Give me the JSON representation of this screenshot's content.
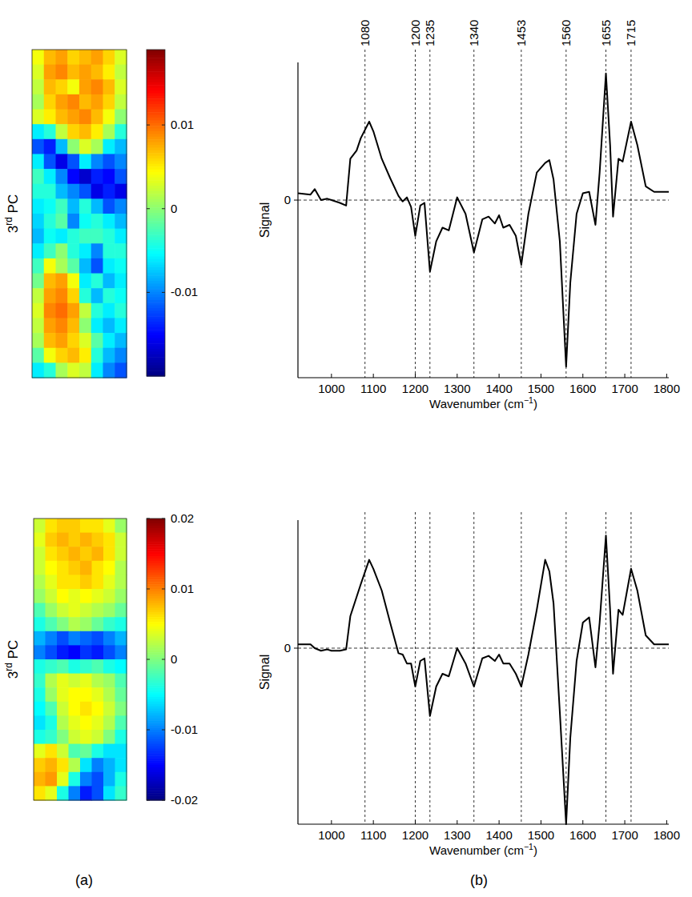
{
  "chart_data": [
    {
      "type": "heatmap",
      "ylabel": "3rd PC",
      "colorbar_range": [
        -0.02,
        0.019
      ],
      "colorbar_ticks": [
        -0.01,
        0,
        0.01
      ],
      "cells": [
        [
          0.004,
          0.007,
          0.008,
          0.006,
          0.007,
          0.008,
          0.006,
          0.003
        ],
        [
          0.003,
          0.008,
          0.009,
          0.007,
          0.008,
          0.007,
          0.005,
          0.002
        ],
        [
          0.002,
          0.007,
          0.006,
          0.004,
          0.008,
          0.009,
          0.007,
          0.003
        ],
        [
          0.001,
          0.006,
          0.008,
          0.009,
          0.007,
          0.008,
          0.006,
          0.002
        ],
        [
          0.003,
          0.005,
          0.007,
          0.008,
          0.009,
          0.007,
          0.004,
          0.0
        ],
        [
          -0.006,
          -0.004,
          0.002,
          0.006,
          0.007,
          0.005,
          0.001,
          -0.004
        ],
        [
          -0.012,
          -0.014,
          -0.008,
          0.0,
          0.003,
          0.001,
          -0.006,
          -0.008
        ],
        [
          -0.006,
          -0.012,
          -0.016,
          -0.012,
          -0.006,
          -0.01,
          -0.012,
          -0.01
        ],
        [
          -0.003,
          -0.006,
          -0.01,
          -0.015,
          -0.017,
          -0.014,
          -0.015,
          -0.012
        ],
        [
          -0.004,
          -0.004,
          -0.008,
          -0.01,
          -0.012,
          -0.016,
          -0.014,
          -0.016
        ],
        [
          -0.006,
          -0.005,
          -0.003,
          -0.008,
          -0.004,
          -0.008,
          -0.012,
          -0.01
        ],
        [
          -0.007,
          -0.004,
          -0.002,
          -0.01,
          -0.005,
          -0.004,
          -0.006,
          -0.008
        ],
        [
          -0.008,
          -0.005,
          -0.006,
          -0.004,
          -0.003,
          -0.003,
          -0.004,
          -0.006
        ],
        [
          -0.006,
          -0.003,
          0.0,
          -0.004,
          -0.006,
          -0.01,
          -0.004,
          -0.004
        ],
        [
          -0.003,
          0.004,
          0.001,
          -0.002,
          -0.008,
          -0.012,
          -0.006,
          -0.005
        ],
        [
          -0.001,
          0.007,
          0.008,
          0.004,
          -0.006,
          -0.004,
          -0.008,
          -0.006
        ],
        [
          0.002,
          0.008,
          0.009,
          0.006,
          -0.004,
          -0.008,
          -0.004,
          -0.005
        ],
        [
          0.003,
          0.009,
          0.01,
          0.008,
          0.002,
          -0.004,
          -0.006,
          -0.004
        ],
        [
          0.002,
          0.008,
          0.009,
          0.007,
          0.0,
          -0.006,
          -0.008,
          -0.006
        ],
        [
          0.001,
          0.007,
          0.008,
          0.006,
          0.003,
          -0.002,
          -0.006,
          -0.008
        ],
        [
          -0.002,
          0.004,
          0.006,
          0.007,
          0.005,
          -0.004,
          -0.008,
          -0.01
        ],
        [
          -0.006,
          -0.004,
          0.001,
          0.003,
          0.002,
          -0.006,
          -0.01,
          -0.012
        ]
      ]
    },
    {
      "type": "line",
      "xlabel": "Wavenumber (cm−1)",
      "ylabel": "Signal",
      "xlim": [
        920,
        1805
      ],
      "ylim": [
        -1.29,
        1
      ],
      "xticks": [
        1000,
        1100,
        1200,
        1300,
        1400,
        1500,
        1600,
        1700,
        1800
      ],
      "yticks": [
        0
      ],
      "annotations": [
        {
          "x": 1080,
          "text": "1080"
        },
        {
          "x": 1200,
          "text": "1200"
        },
        {
          "x": 1235,
          "text": "1235"
        },
        {
          "x": 1340,
          "text": "1340"
        },
        {
          "x": 1453,
          "text": "1453"
        },
        {
          "x": 1560,
          "text": "1560"
        },
        {
          "x": 1655,
          "text": "1655"
        },
        {
          "x": 1715,
          "text": "1715"
        }
      ],
      "x": [
        920,
        950,
        960,
        975,
        990,
        1000,
        1020,
        1035,
        1045,
        1060,
        1070,
        1090,
        1100,
        1120,
        1140,
        1160,
        1170,
        1180,
        1190,
        1200,
        1212,
        1222,
        1235,
        1250,
        1265,
        1280,
        1300,
        1320,
        1340,
        1360,
        1375,
        1390,
        1400,
        1410,
        1425,
        1440,
        1453,
        1470,
        1490,
        1510,
        1520,
        1530,
        1545,
        1560,
        1570,
        1585,
        1600,
        1615,
        1630,
        1640,
        1655,
        1665,
        1672,
        1685,
        1695,
        1715,
        1730,
        1750,
        1770,
        1805
      ],
      "series": [
        {
          "color": "#000000",
          "values": [
            0.05,
            0.04,
            0.08,
            0.0,
            0.01,
            0.0,
            -0.02,
            -0.04,
            0.3,
            0.36,
            0.45,
            0.57,
            0.5,
            0.3,
            0.16,
            0.03,
            -0.01,
            0.02,
            -0.05,
            -0.26,
            -0.04,
            -0.02,
            -0.52,
            -0.3,
            -0.2,
            -0.22,
            0.02,
            -0.1,
            -0.38,
            -0.14,
            -0.12,
            -0.17,
            -0.11,
            -0.2,
            -0.18,
            -0.26,
            -0.47,
            -0.1,
            0.2,
            0.27,
            0.29,
            0.15,
            -0.3,
            -1.21,
            -0.6,
            -0.1,
            0.05,
            0.06,
            -0.18,
            0.2,
            0.92,
            0.4,
            -0.12,
            0.3,
            0.28,
            0.57,
            0.4,
            0.1,
            0.06,
            0.06
          ]
        }
      ]
    },
    {
      "type": "heatmap",
      "ylabel": "3rd PC",
      "colorbar_range": [
        -0.02,
        0.02
      ],
      "colorbar_ticks": [
        -0.02,
        -0.01,
        0,
        0.01,
        0.02
      ],
      "cells": [
        [
          0.003,
          0.006,
          0.007,
          0.007,
          0.006,
          0.006,
          0.004,
          0.001
        ],
        [
          0.004,
          0.007,
          0.008,
          0.007,
          0.008,
          0.007,
          0.006,
          0.003
        ],
        [
          0.003,
          0.006,
          0.007,
          0.008,
          0.007,
          0.008,
          0.006,
          0.003
        ],
        [
          0.003,
          0.005,
          0.006,
          0.007,
          0.008,
          0.006,
          0.005,
          0.002
        ],
        [
          0.002,
          0.004,
          0.006,
          0.006,
          0.007,
          0.006,
          0.004,
          0.002
        ],
        [
          0.001,
          0.003,
          0.005,
          0.004,
          0.005,
          0.004,
          0.003,
          0.001
        ],
        [
          -0.002,
          0.001,
          0.003,
          0.004,
          0.003,
          0.002,
          0.001,
          -0.001
        ],
        [
          -0.004,
          -0.002,
          0.0,
          0.002,
          0.001,
          -0.001,
          -0.003,
          -0.004
        ],
        [
          -0.008,
          -0.01,
          -0.012,
          -0.01,
          -0.011,
          -0.012,
          -0.01,
          -0.008
        ],
        [
          -0.01,
          -0.012,
          -0.014,
          -0.015,
          -0.013,
          -0.014,
          -0.012,
          -0.01
        ],
        [
          -0.004,
          -0.003,
          -0.002,
          -0.004,
          -0.003,
          -0.002,
          -0.004,
          -0.005
        ],
        [
          -0.003,
          0.002,
          0.004,
          0.003,
          0.004,
          0.002,
          0.001,
          -0.002
        ],
        [
          -0.004,
          0.001,
          0.004,
          0.005,
          0.005,
          0.004,
          0.002,
          -0.001
        ],
        [
          -0.005,
          -0.002,
          0.003,
          0.005,
          0.006,
          0.005,
          0.003,
          0.0
        ],
        [
          -0.006,
          -0.004,
          0.002,
          0.004,
          0.005,
          0.004,
          0.002,
          -0.002
        ],
        [
          -0.004,
          -0.003,
          0.0,
          0.003,
          0.004,
          0.003,
          0.0,
          -0.004
        ],
        [
          0.004,
          0.006,
          0.003,
          -0.002,
          -0.001,
          -0.004,
          -0.006,
          -0.006
        ],
        [
          0.007,
          0.008,
          0.006,
          0.002,
          -0.006,
          -0.01,
          -0.008,
          -0.006
        ],
        [
          0.008,
          0.009,
          0.004,
          -0.004,
          -0.01,
          -0.012,
          -0.008,
          -0.004
        ],
        [
          0.006,
          0.004,
          -0.004,
          -0.01,
          -0.014,
          -0.012,
          -0.006,
          -0.003
        ]
      ]
    },
    {
      "type": "line",
      "xlabel": "Wavenumber (cm−1)",
      "ylabel": "Signal",
      "xlim": [
        920,
        1805
      ],
      "ylim": [
        -1.375,
        1
      ],
      "xticks": [
        1000,
        1100,
        1200,
        1300,
        1400,
        1500,
        1600,
        1700,
        1800
      ],
      "yticks": [
        0
      ],
      "vlines": [
        1080,
        1200,
        1235,
        1340,
        1453,
        1560,
        1655,
        1715
      ],
      "x": [
        920,
        950,
        960,
        975,
        990,
        1000,
        1020,
        1035,
        1045,
        1060,
        1070,
        1090,
        1100,
        1120,
        1140,
        1160,
        1170,
        1180,
        1190,
        1200,
        1212,
        1222,
        1235,
        1250,
        1265,
        1280,
        1300,
        1320,
        1340,
        1360,
        1375,
        1390,
        1400,
        1410,
        1425,
        1440,
        1453,
        1470,
        1490,
        1510,
        1520,
        1530,
        1545,
        1560,
        1570,
        1585,
        1600,
        1615,
        1630,
        1640,
        1655,
        1665,
        1672,
        1685,
        1695,
        1715,
        1730,
        1750,
        1770,
        1805
      ],
      "series": [
        {
          "color": "#000000",
          "values": [
            0.03,
            0.03,
            0.0,
            -0.02,
            -0.01,
            -0.02,
            -0.02,
            -0.01,
            0.25,
            0.4,
            0.5,
            0.69,
            0.62,
            0.45,
            0.2,
            -0.04,
            -0.05,
            -0.12,
            -0.12,
            -0.3,
            -0.1,
            -0.08,
            -0.53,
            -0.3,
            -0.2,
            -0.22,
            0.0,
            -0.12,
            -0.3,
            -0.08,
            -0.06,
            -0.1,
            -0.05,
            -0.12,
            -0.12,
            -0.2,
            -0.3,
            -0.05,
            0.3,
            0.69,
            0.6,
            0.35,
            -0.5,
            -1.375,
            -0.7,
            -0.1,
            0.2,
            0.24,
            -0.15,
            0.2,
            0.88,
            0.3,
            -0.2,
            0.3,
            0.26,
            0.62,
            0.45,
            0.1,
            0.03,
            0.03
          ]
        }
      ]
    }
  ],
  "panel_labels": [
    "(a)",
    "(b)"
  ]
}
